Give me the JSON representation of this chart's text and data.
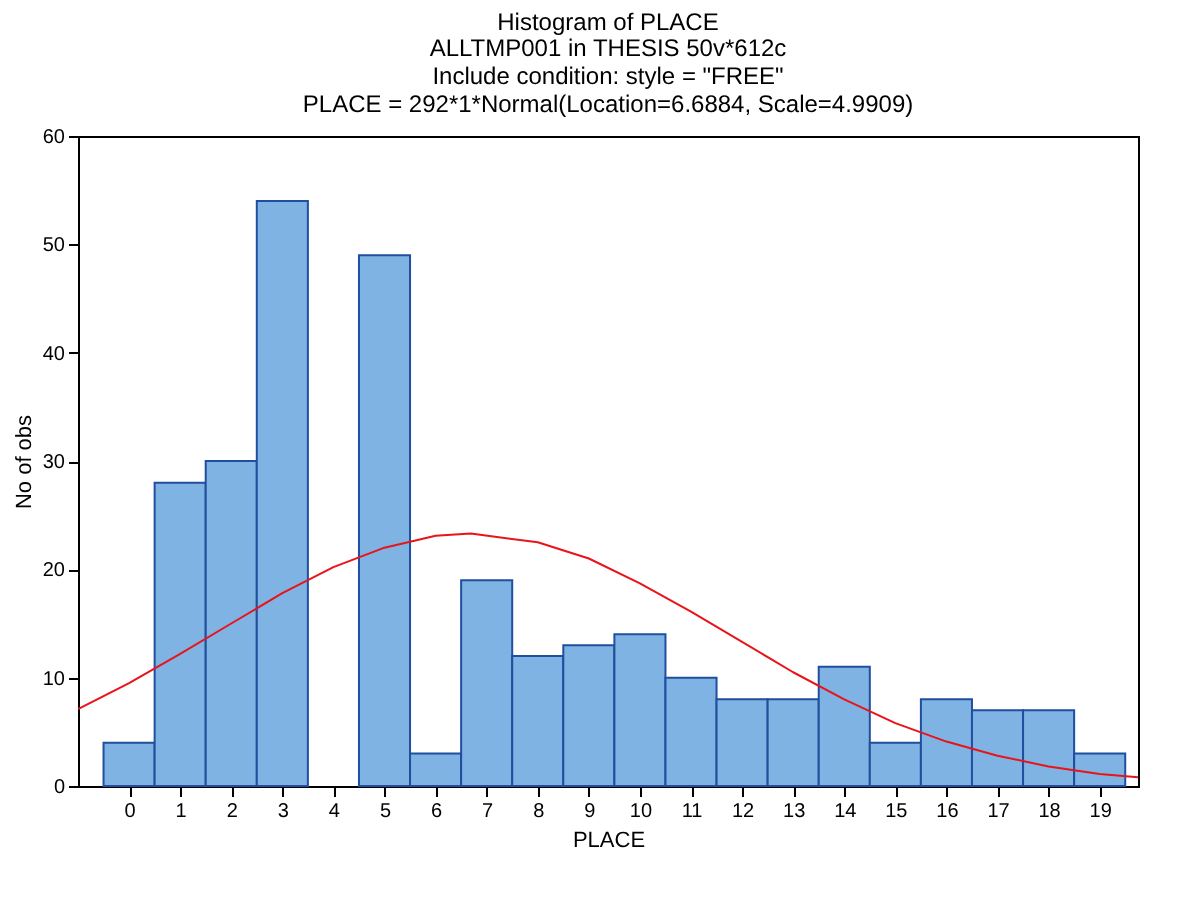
{
  "chart_data": {
    "type": "histogram",
    "title": "Histogram of PLACE",
    "subtitle": "ALLTMP001 in THESIS 50v*612c\nInclude condition: style = \"FREE\"\nPLACE = 292*1*Normal(Location=6.6884, Scale=4.9909)",
    "xlabel": "PLACE",
    "ylabel": "No of obs",
    "bins": [
      -0.5,
      0.5,
      1.5,
      2.5,
      3.5,
      4.5,
      5.5,
      6.5,
      7.5,
      8.5,
      9.5,
      10.5,
      11.5,
      12.5,
      13.5,
      14.5,
      15.5,
      16.5,
      17.5,
      18.5,
      19.5
    ],
    "series": [
      {
        "color": "#7fb3e3",
        "values": [
          4,
          28,
          30,
          54,
          0,
          49,
          3,
          19,
          12,
          13,
          14,
          10,
          8,
          8,
          11,
          4,
          8,
          7,
          7,
          3
        ]
      },
      {
        "type": "line",
        "color": "#e8141a",
        "x": [
          -1,
          0,
          1,
          2,
          3,
          4,
          5,
          6,
          6.69,
          8,
          9,
          10,
          11,
          12,
          13,
          14,
          15,
          16,
          17,
          18,
          19,
          19.75
        ],
        "values": [
          7.1,
          9.5,
          12.2,
          15.0,
          17.8,
          20.2,
          22.0,
          23.1,
          23.3,
          22.5,
          21.0,
          18.7,
          16.1,
          13.3,
          10.5,
          8.0,
          5.8,
          4.1,
          2.8,
          1.8,
          1.1,
          0.8
        ]
      }
    ],
    "xlim": [
      -1,
      19.75
    ],
    "xticks": [
      0,
      1,
      2,
      3,
      4,
      5,
      6,
      7,
      8,
      9,
      10,
      11,
      12,
      13,
      14,
      15,
      16,
      17,
      18,
      19
    ],
    "ylim": [
      0,
      60
    ],
    "yticks": [
      0,
      10,
      20,
      30,
      40,
      50,
      60
    ],
    "grid": false
  }
}
